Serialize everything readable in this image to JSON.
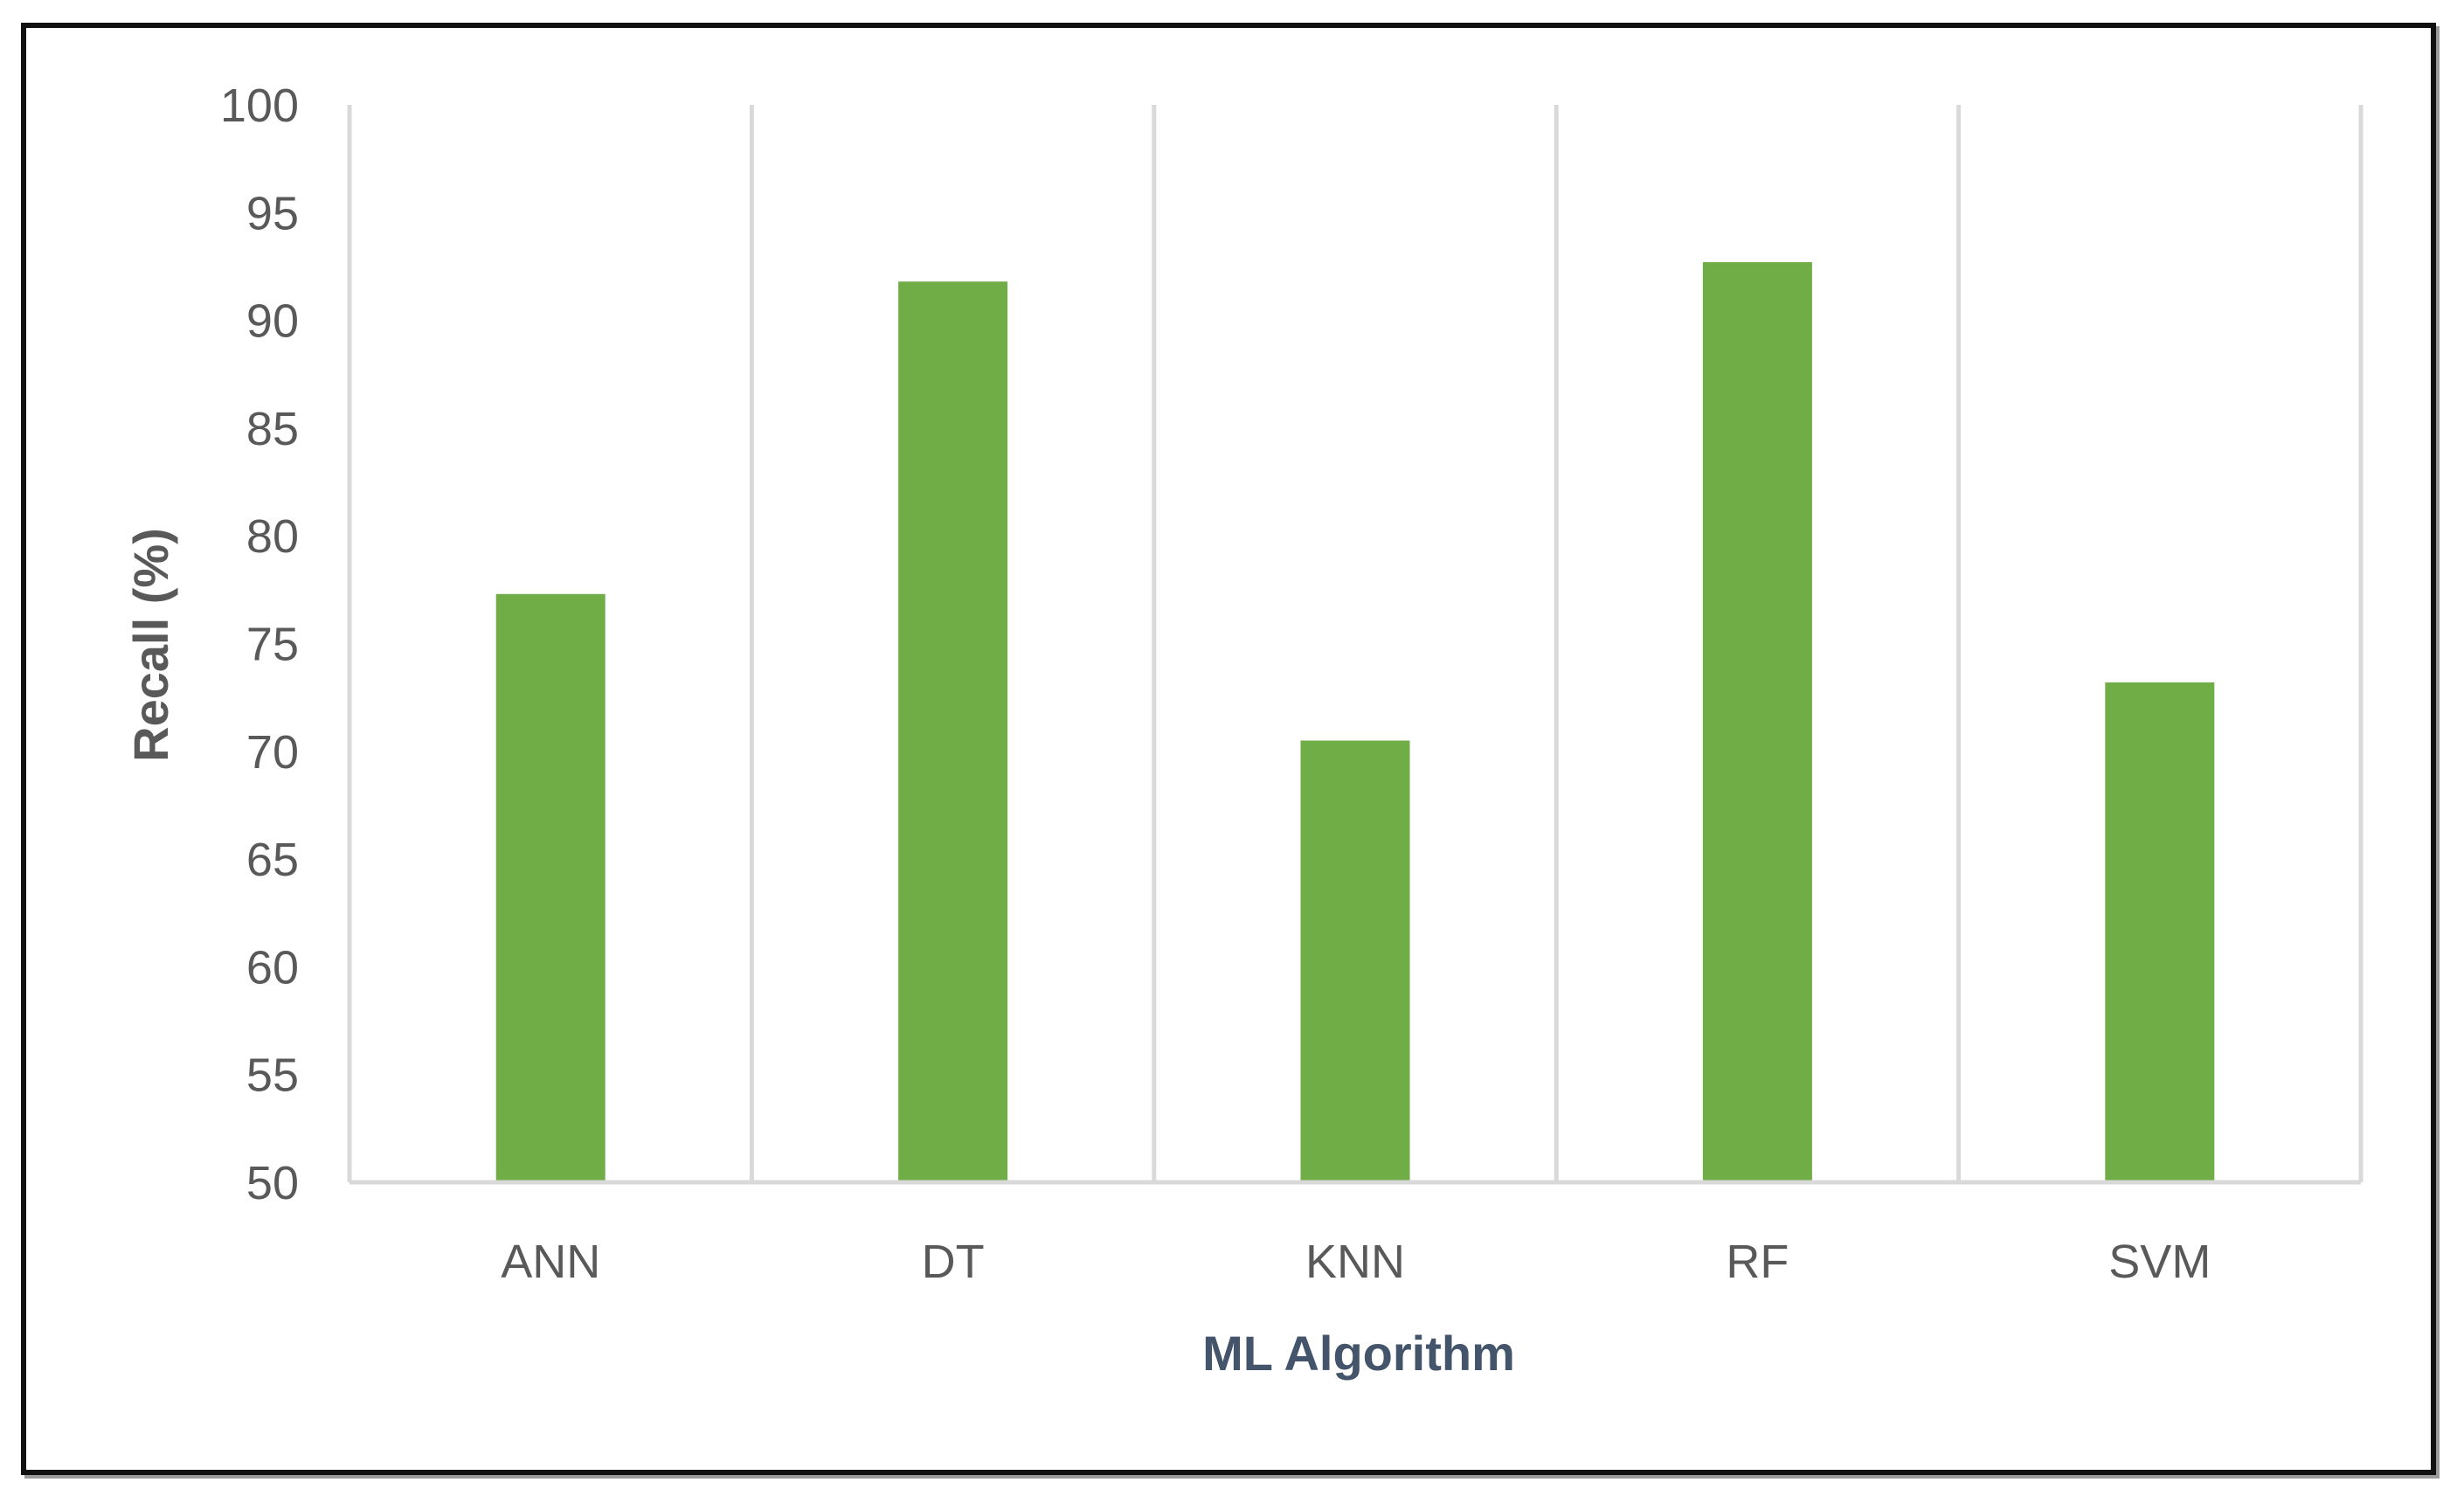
{
  "chart_data": {
    "type": "bar",
    "categories": [
      "ANN",
      "DT",
      "KNN",
      "RF",
      "SVM"
    ],
    "values": [
      77.3,
      91.8,
      70.5,
      92.7,
      73.2
    ],
    "xlabel": "ML Algorithm",
    "ylabel": "Recall (%)",
    "ylim": [
      50,
      100
    ],
    "yticks": [
      50,
      55,
      60,
      65,
      70,
      75,
      80,
      85,
      90,
      95,
      100
    ],
    "grid": "vertical",
    "legend": "none",
    "colors": {
      "bar": "#70ad47",
      "grid": "#d9d9d9",
      "tick_text": "#595959",
      "ylabel_text": "#595959",
      "xlabel_text": "#44546a",
      "frame": "#111111"
    }
  }
}
